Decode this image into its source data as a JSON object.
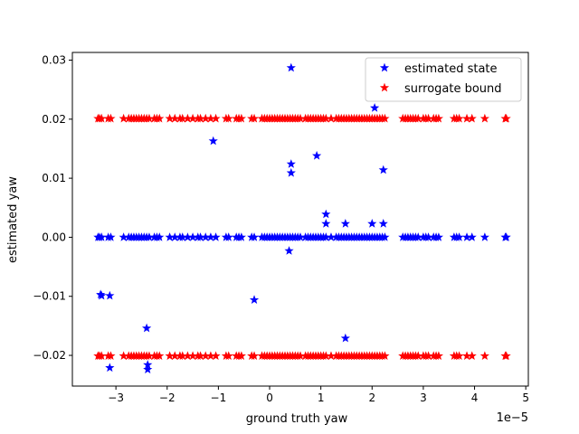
{
  "chart_data": {
    "type": "scatter",
    "title": "",
    "xlabel": "ground truth yaw",
    "ylabel": "estimated yaw",
    "x_offset_label": "1e−5",
    "xlim": [
      -3.85e-05,
      5.05e-05
    ],
    "ylim": [
      -0.0252,
      0.0313
    ],
    "x_ticks": [
      -3e-05,
      -2e-05,
      -1e-05,
      0,
      1e-05,
      2e-05,
      3e-05,
      4e-05,
      5e-05
    ],
    "x_tick_labels": [
      "−3",
      "−2",
      "−1",
      "0",
      "1",
      "2",
      "3",
      "4",
      "5"
    ],
    "y_ticks": [
      -0.02,
      -0.01,
      0.0,
      0.01,
      0.02,
      0.03
    ],
    "y_tick_labels": [
      "−0.02",
      "−0.01",
      "0.00",
      "0.01",
      "0.02",
      "0.03"
    ],
    "grid": false,
    "legend_position": "top-right",
    "marker": "star",
    "series": [
      {
        "name": "estimated state",
        "color": "#0000ff",
        "points": [
          [
            -3.35e-05,
            0.0
          ],
          [
            -3.32e-05,
            0.0
          ],
          [
            -3.28e-05,
            0.0
          ],
          [
            -3.15e-05,
            0.0
          ],
          [
            -3.1e-05,
            0.0
          ],
          [
            -2.85e-05,
            0.0
          ],
          [
            -2.75e-05,
            0.0
          ],
          [
            -2.7e-05,
            0.0
          ],
          [
            -2.65e-05,
            0.0
          ],
          [
            -2.6e-05,
            0.0
          ],
          [
            -2.55e-05,
            0.0
          ],
          [
            -2.5e-05,
            0.0
          ],
          [
            -2.45e-05,
            0.0
          ],
          [
            -2.4e-05,
            0.0
          ],
          [
            -2.35e-05,
            0.0
          ],
          [
            -2.25e-05,
            0.0
          ],
          [
            -2.2e-05,
            0.0
          ],
          [
            -2.15e-05,
            0.0
          ],
          [
            -1.95e-05,
            0.0
          ],
          [
            -1.85e-05,
            0.0
          ],
          [
            -1.75e-05,
            0.0
          ],
          [
            -1.7e-05,
            0.0
          ],
          [
            -1.6e-05,
            0.0
          ],
          [
            -1.5e-05,
            0.0
          ],
          [
            -1.4e-05,
            0.0
          ],
          [
            -1.35e-05,
            0.0
          ],
          [
            -1.25e-05,
            0.0
          ],
          [
            -1.15e-05,
            0.0
          ],
          [
            -1.05e-05,
            0.0
          ],
          [
            -8.5e-06,
            0.0
          ],
          [
            -8e-06,
            0.0
          ],
          [
            -6.5e-06,
            0.0
          ],
          [
            -6e-06,
            0.0
          ],
          [
            -5.5e-06,
            0.0
          ],
          [
            -3.5e-06,
            0.0
          ],
          [
            -3e-06,
            0.0
          ],
          [
            -1.5e-06,
            0.0
          ],
          [
            -1e-06,
            0.0
          ],
          [
            -5e-07,
            0.0
          ],
          [
            0.0,
            0.0
          ],
          [
            5e-07,
            0.0
          ],
          [
            1e-06,
            0.0
          ],
          [
            1.5e-06,
            0.0
          ],
          [
            2e-06,
            0.0
          ],
          [
            2.5e-06,
            0.0
          ],
          [
            3e-06,
            0.0
          ],
          [
            3.5e-06,
            0.0
          ],
          [
            4e-06,
            0.0
          ],
          [
            4.5e-06,
            0.0
          ],
          [
            5e-06,
            0.0
          ],
          [
            5.5e-06,
            0.0
          ],
          [
            6e-06,
            0.0
          ],
          [
            7e-06,
            0.0
          ],
          [
            7.5e-06,
            0.0
          ],
          [
            8e-06,
            0.0
          ],
          [
            8.5e-06,
            0.0
          ],
          [
            9e-06,
            0.0
          ],
          [
            9.5e-06,
            0.0
          ],
          [
            1e-05,
            0.0
          ],
          [
            1.05e-05,
            0.0
          ],
          [
            1.1e-05,
            0.0
          ],
          [
            1.2e-05,
            0.0
          ],
          [
            1.3e-05,
            0.0
          ],
          [
            1.35e-05,
            0.0
          ],
          [
            1.4e-05,
            0.0
          ],
          [
            1.45e-05,
            0.0
          ],
          [
            1.5e-05,
            0.0
          ],
          [
            1.55e-05,
            0.0
          ],
          [
            1.6e-05,
            0.0
          ],
          [
            1.65e-05,
            0.0
          ],
          [
            1.7e-05,
            0.0
          ],
          [
            1.75e-05,
            0.0
          ],
          [
            1.8e-05,
            0.0
          ],
          [
            1.85e-05,
            0.0
          ],
          [
            1.9e-05,
            0.0
          ],
          [
            1.95e-05,
            0.0
          ],
          [
            2e-05,
            0.0
          ],
          [
            2.05e-05,
            0.0
          ],
          [
            2.1e-05,
            0.0
          ],
          [
            2.15e-05,
            0.0
          ],
          [
            2.2e-05,
            0.0
          ],
          [
            2.25e-05,
            0.0
          ],
          [
            2.6e-05,
            0.0
          ],
          [
            2.65e-05,
            0.0
          ],
          [
            2.7e-05,
            0.0
          ],
          [
            2.75e-05,
            0.0
          ],
          [
            2.8e-05,
            0.0
          ],
          [
            2.85e-05,
            0.0
          ],
          [
            2.9e-05,
            0.0
          ],
          [
            3e-05,
            0.0
          ],
          [
            3.05e-05,
            0.0
          ],
          [
            3.1e-05,
            0.0
          ],
          [
            3.2e-05,
            0.0
          ],
          [
            3.25e-05,
            0.0
          ],
          [
            3.3e-05,
            0.0
          ],
          [
            3.6e-05,
            0.0
          ],
          [
            3.65e-05,
            0.0
          ],
          [
            3.7e-05,
            0.0
          ],
          [
            3.85e-05,
            0.0
          ],
          [
            3.95e-05,
            0.0
          ],
          [
            4.2e-05,
            0.0
          ],
          [
            4.6e-05,
            0.0
          ],
          [
            4.62e-05,
            0.0
          ],
          [
            -3.3e-05,
            -0.0097
          ],
          [
            -3.28e-05,
            -0.0099
          ],
          [
            -3.12e-05,
            -0.0099
          ],
          [
            -3.12e-05,
            -0.0221
          ],
          [
            -2.4e-05,
            -0.0154
          ],
          [
            -2.38e-05,
            -0.0216
          ],
          [
            -2.38e-05,
            -0.0224
          ],
          [
            -1.1e-05,
            0.0163
          ],
          [
            -3e-06,
            -0.0106
          ],
          [
            3.8e-06,
            -0.0023
          ],
          [
            4.2e-06,
            0.0287
          ],
          [
            4.2e-06,
            0.0124
          ],
          [
            4.2e-06,
            0.0109
          ],
          [
            9.2e-06,
            0.0138
          ],
          [
            1.1e-05,
            0.0039
          ],
          [
            1.1e-05,
            0.0023
          ],
          [
            1.48e-05,
            0.0023
          ],
          [
            1.48e-05,
            -0.0171
          ],
          [
            2e-05,
            0.0023
          ],
          [
            2.05e-05,
            0.0219
          ],
          [
            2.22e-05,
            0.0114
          ],
          [
            2.22e-05,
            0.0023
          ]
        ]
      },
      {
        "name": "surrogate bound",
        "color": "#ff0000",
        "upper": 0.0201,
        "lower": -0.0201,
        "x": [
          -3.35e-05,
          -3.32e-05,
          -3.28e-05,
          -3.15e-05,
          -3.1e-05,
          -2.85e-05,
          -2.75e-05,
          -2.7e-05,
          -2.65e-05,
          -2.6e-05,
          -2.55e-05,
          -2.5e-05,
          -2.45e-05,
          -2.4e-05,
          -2.35e-05,
          -2.25e-05,
          -2.2e-05,
          -2.15e-05,
          -1.95e-05,
          -1.85e-05,
          -1.75e-05,
          -1.7e-05,
          -1.6e-05,
          -1.5e-05,
          -1.4e-05,
          -1.35e-05,
          -1.25e-05,
          -1.15e-05,
          -1.05e-05,
          -8.5e-06,
          -8e-06,
          -6.5e-06,
          -6e-06,
          -5.5e-06,
          -3.5e-06,
          -3e-06,
          -1.5e-06,
          -1e-06,
          -5e-07,
          0.0,
          5e-07,
          1e-06,
          1.5e-06,
          2e-06,
          2.5e-06,
          3e-06,
          3.5e-06,
          4e-06,
          4.5e-06,
          5e-06,
          5.5e-06,
          6e-06,
          7e-06,
          7.5e-06,
          8e-06,
          8.5e-06,
          9e-06,
          9.5e-06,
          1e-05,
          1.05e-05,
          1.1e-05,
          1.2e-05,
          1.3e-05,
          1.35e-05,
          1.4e-05,
          1.45e-05,
          1.5e-05,
          1.55e-05,
          1.6e-05,
          1.65e-05,
          1.7e-05,
          1.75e-05,
          1.8e-05,
          1.85e-05,
          1.9e-05,
          1.95e-05,
          2e-05,
          2.05e-05,
          2.1e-05,
          2.15e-05,
          2.2e-05,
          2.25e-05,
          2.6e-05,
          2.65e-05,
          2.7e-05,
          2.75e-05,
          2.8e-05,
          2.85e-05,
          2.9e-05,
          3e-05,
          3.05e-05,
          3.1e-05,
          3.2e-05,
          3.25e-05,
          3.3e-05,
          3.6e-05,
          3.65e-05,
          3.7e-05,
          3.85e-05,
          3.95e-05,
          4.2e-05,
          4.6e-05,
          4.62e-05
        ]
      }
    ]
  }
}
